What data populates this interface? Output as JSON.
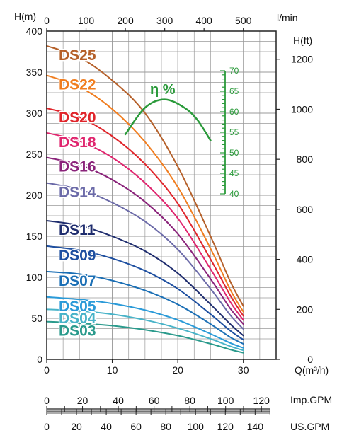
{
  "chart_data": {
    "type": "line",
    "title": "",
    "xlabel": "Q(m³/h)",
    "ylabel": "H(m)",
    "xlim": [
      0,
      35
    ],
    "ylim": [
      0,
      400
    ],
    "xticks": [
      "0",
      "10",
      "20",
      "30"
    ],
    "yticks": [
      "0",
      "50",
      "100",
      "150",
      "200",
      "250",
      "300",
      "350",
      "400"
    ],
    "grid": true,
    "top_axis": {
      "label": "l/min",
      "ticks": [
        "0",
        "100",
        "200",
        "300",
        "400",
        "500"
      ]
    },
    "right_axis": {
      "label": "H(ft)",
      "ticks": [
        "0",
        "200",
        "400",
        "600",
        "800",
        "1000",
        "1200"
      ]
    },
    "bottom_axes": [
      {
        "label": "Imp.GPM",
        "ticks": [
          "0",
          "20",
          "40",
          "60",
          "80",
          "100",
          "120"
        ]
      },
      {
        "label": "US.GPM",
        "ticks": [
          "0",
          "20",
          "40",
          "60",
          "80",
          "100",
          "120",
          "140"
        ]
      }
    ],
    "series": [
      {
        "name": "DS25",
        "color": "#b5602a",
        "x": [
          0,
          5,
          10,
          15,
          20,
          25,
          28,
          30
        ],
        "y": [
          382,
          368,
          340,
          300,
          235,
          150,
          95,
          65
        ]
      },
      {
        "name": "DS22",
        "color": "#f07d1f",
        "x": [
          0,
          5,
          10,
          15,
          20,
          25,
          28,
          30
        ],
        "y": [
          346,
          332,
          305,
          265,
          210,
          135,
          85,
          58
        ]
      },
      {
        "name": "DS20",
        "color": "#e0252b",
        "x": [
          0,
          5,
          10,
          15,
          20,
          25,
          28,
          30
        ],
        "y": [
          306,
          295,
          272,
          238,
          190,
          122,
          78,
          53
        ]
      },
      {
        "name": "DS18",
        "color": "#e0256e",
        "x": [
          0,
          5,
          10,
          15,
          20,
          25,
          28,
          30
        ],
        "y": [
          276,
          266,
          246,
          215,
          172,
          110,
          70,
          48
        ]
      },
      {
        "name": "DS16",
        "color": "#8a237a",
        "x": [
          0,
          5,
          10,
          15,
          20,
          25,
          28,
          30
        ],
        "y": [
          246,
          237,
          219,
          192,
          153,
          98,
          62,
          43
        ]
      },
      {
        "name": "DS14",
        "color": "#6b6aa8",
        "x": [
          0,
          5,
          10,
          15,
          20,
          25,
          28,
          30
        ],
        "y": [
          215,
          207,
          191,
          168,
          134,
          86,
          54,
          37
        ]
      },
      {
        "name": "DS11",
        "color": "#1f2d6e",
        "x": [
          0,
          5,
          10,
          15,
          20,
          25,
          28,
          30
        ],
        "y": [
          169,
          163,
          150,
          132,
          105,
          67,
          43,
          29
        ]
      },
      {
        "name": "DS09",
        "color": "#1e4fa0",
        "x": [
          0,
          5,
          10,
          15,
          20,
          25,
          28,
          30
        ],
        "y": [
          138,
          133,
          123,
          108,
          86,
          55,
          35,
          24
        ]
      },
      {
        "name": "DS07",
        "color": "#1b6fb5",
        "x": [
          0,
          5,
          10,
          15,
          20,
          25,
          28,
          30
        ],
        "y": [
          107,
          104,
          96,
          84,
          67,
          43,
          27,
          19
        ]
      },
      {
        "name": "DS05",
        "color": "#2a9ad8",
        "x": [
          0,
          5,
          10,
          15,
          20,
          25,
          28,
          30
        ],
        "y": [
          76,
          73,
          68,
          60,
          48,
          31,
          20,
          14
        ]
      },
      {
        "name": "DS04",
        "color": "#48b3c8",
        "x": [
          0,
          5,
          10,
          15,
          20,
          25,
          28,
          30
        ],
        "y": [
          61,
          59,
          55,
          48,
          38,
          25,
          16,
          11
        ]
      },
      {
        "name": "DS03",
        "color": "#2a9a8c",
        "x": [
          0,
          5,
          10,
          15,
          20,
          25,
          28,
          30
        ],
        "y": [
          46,
          44,
          41,
          36,
          29,
          19,
          12,
          8
        ]
      }
    ],
    "efficiency": {
      "label": "η %",
      "color": "#2a9a3a",
      "ticks": [
        "40",
        "45",
        "50",
        "55",
        "60",
        "65",
        "70"
      ],
      "range": [
        40,
        70
      ],
      "x": [
        12,
        15,
        18,
        21,
        23,
        25
      ],
      "y": [
        54.5,
        61,
        63,
        61,
        58,
        53
      ]
    }
  }
}
